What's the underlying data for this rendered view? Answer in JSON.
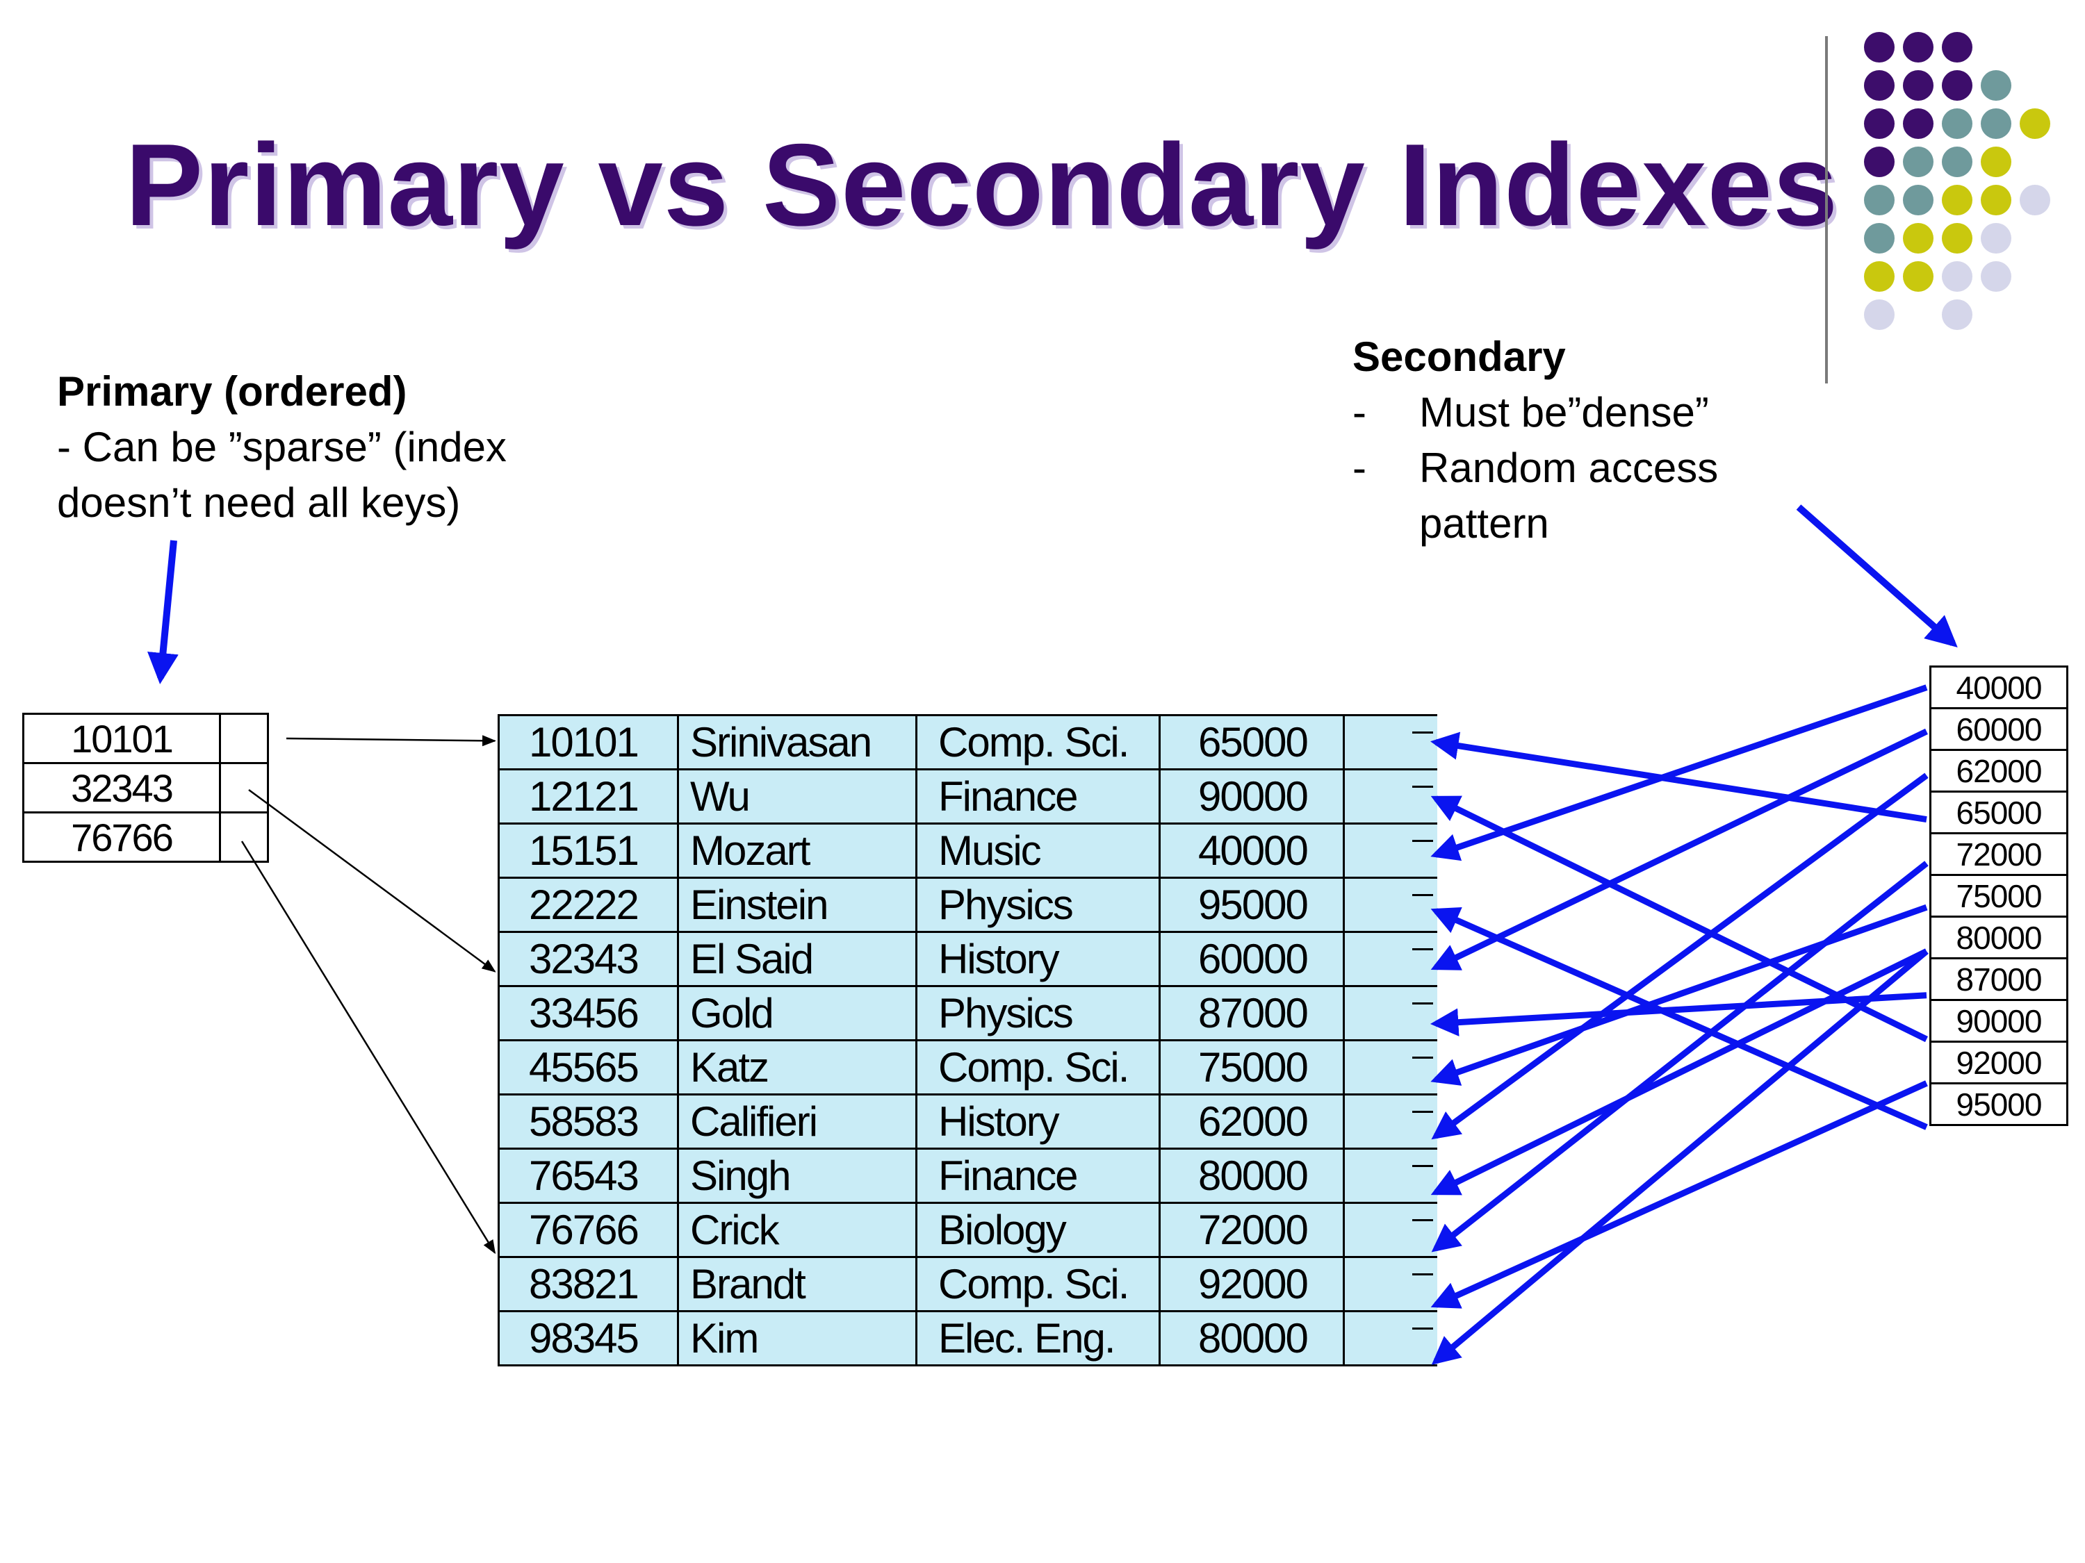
{
  "title": "Primary vs Secondary Indexes",
  "primary_note": {
    "heading": "Primary (ordered)",
    "lines": [
      "- Can be ”sparse” (index",
      "doesn’t need all keys)"
    ]
  },
  "secondary_note": {
    "heading": "Secondary",
    "items": [
      {
        "dash": "-",
        "text": "Must be”dense”"
      },
      {
        "dash": "-",
        "text": "Random access"
      },
      {
        "dash": "",
        "text": "pattern"
      }
    ]
  },
  "primary_index": [
    "10101",
    "32343",
    "76766"
  ],
  "relation": [
    [
      "10101",
      "Srinivasan",
      "Comp. Sci.",
      "65000"
    ],
    [
      "12121",
      "Wu",
      "Finance",
      "90000"
    ],
    [
      "15151",
      "Mozart",
      "Music",
      "40000"
    ],
    [
      "22222",
      "Einstein",
      "Physics",
      "95000"
    ],
    [
      "32343",
      "El Said",
      "History",
      "60000"
    ],
    [
      "33456",
      "Gold",
      "Physics",
      "87000"
    ],
    [
      "45565",
      "Katz",
      "Comp. Sci.",
      "75000"
    ],
    [
      "58583",
      "Califieri",
      "History",
      "62000"
    ],
    [
      "76543",
      "Singh",
      "Finance",
      "80000"
    ],
    [
      "76766",
      "Crick",
      "Biology",
      "72000"
    ],
    [
      "83821",
      "Brandt",
      "Comp. Sci.",
      "92000"
    ],
    [
      "98345",
      "Kim",
      "Elec. Eng.",
      "80000"
    ]
  ],
  "secondary_index": [
    "40000",
    "60000",
    "62000",
    "65000",
    "72000",
    "75000",
    "80000",
    "87000",
    "90000",
    "92000",
    "95000"
  ],
  "colors": {
    "title": "#3a0a6b",
    "title_shadow": "#cfc4e6",
    "row_fill": "#c9ecf6",
    "arrow_blue": "#0a14f0",
    "dot_purple": "#3d0d6b",
    "dot_teal": "#6f9a9c",
    "dot_olive": "#c9c80e",
    "dot_lavender": "#d5d6ea"
  }
}
